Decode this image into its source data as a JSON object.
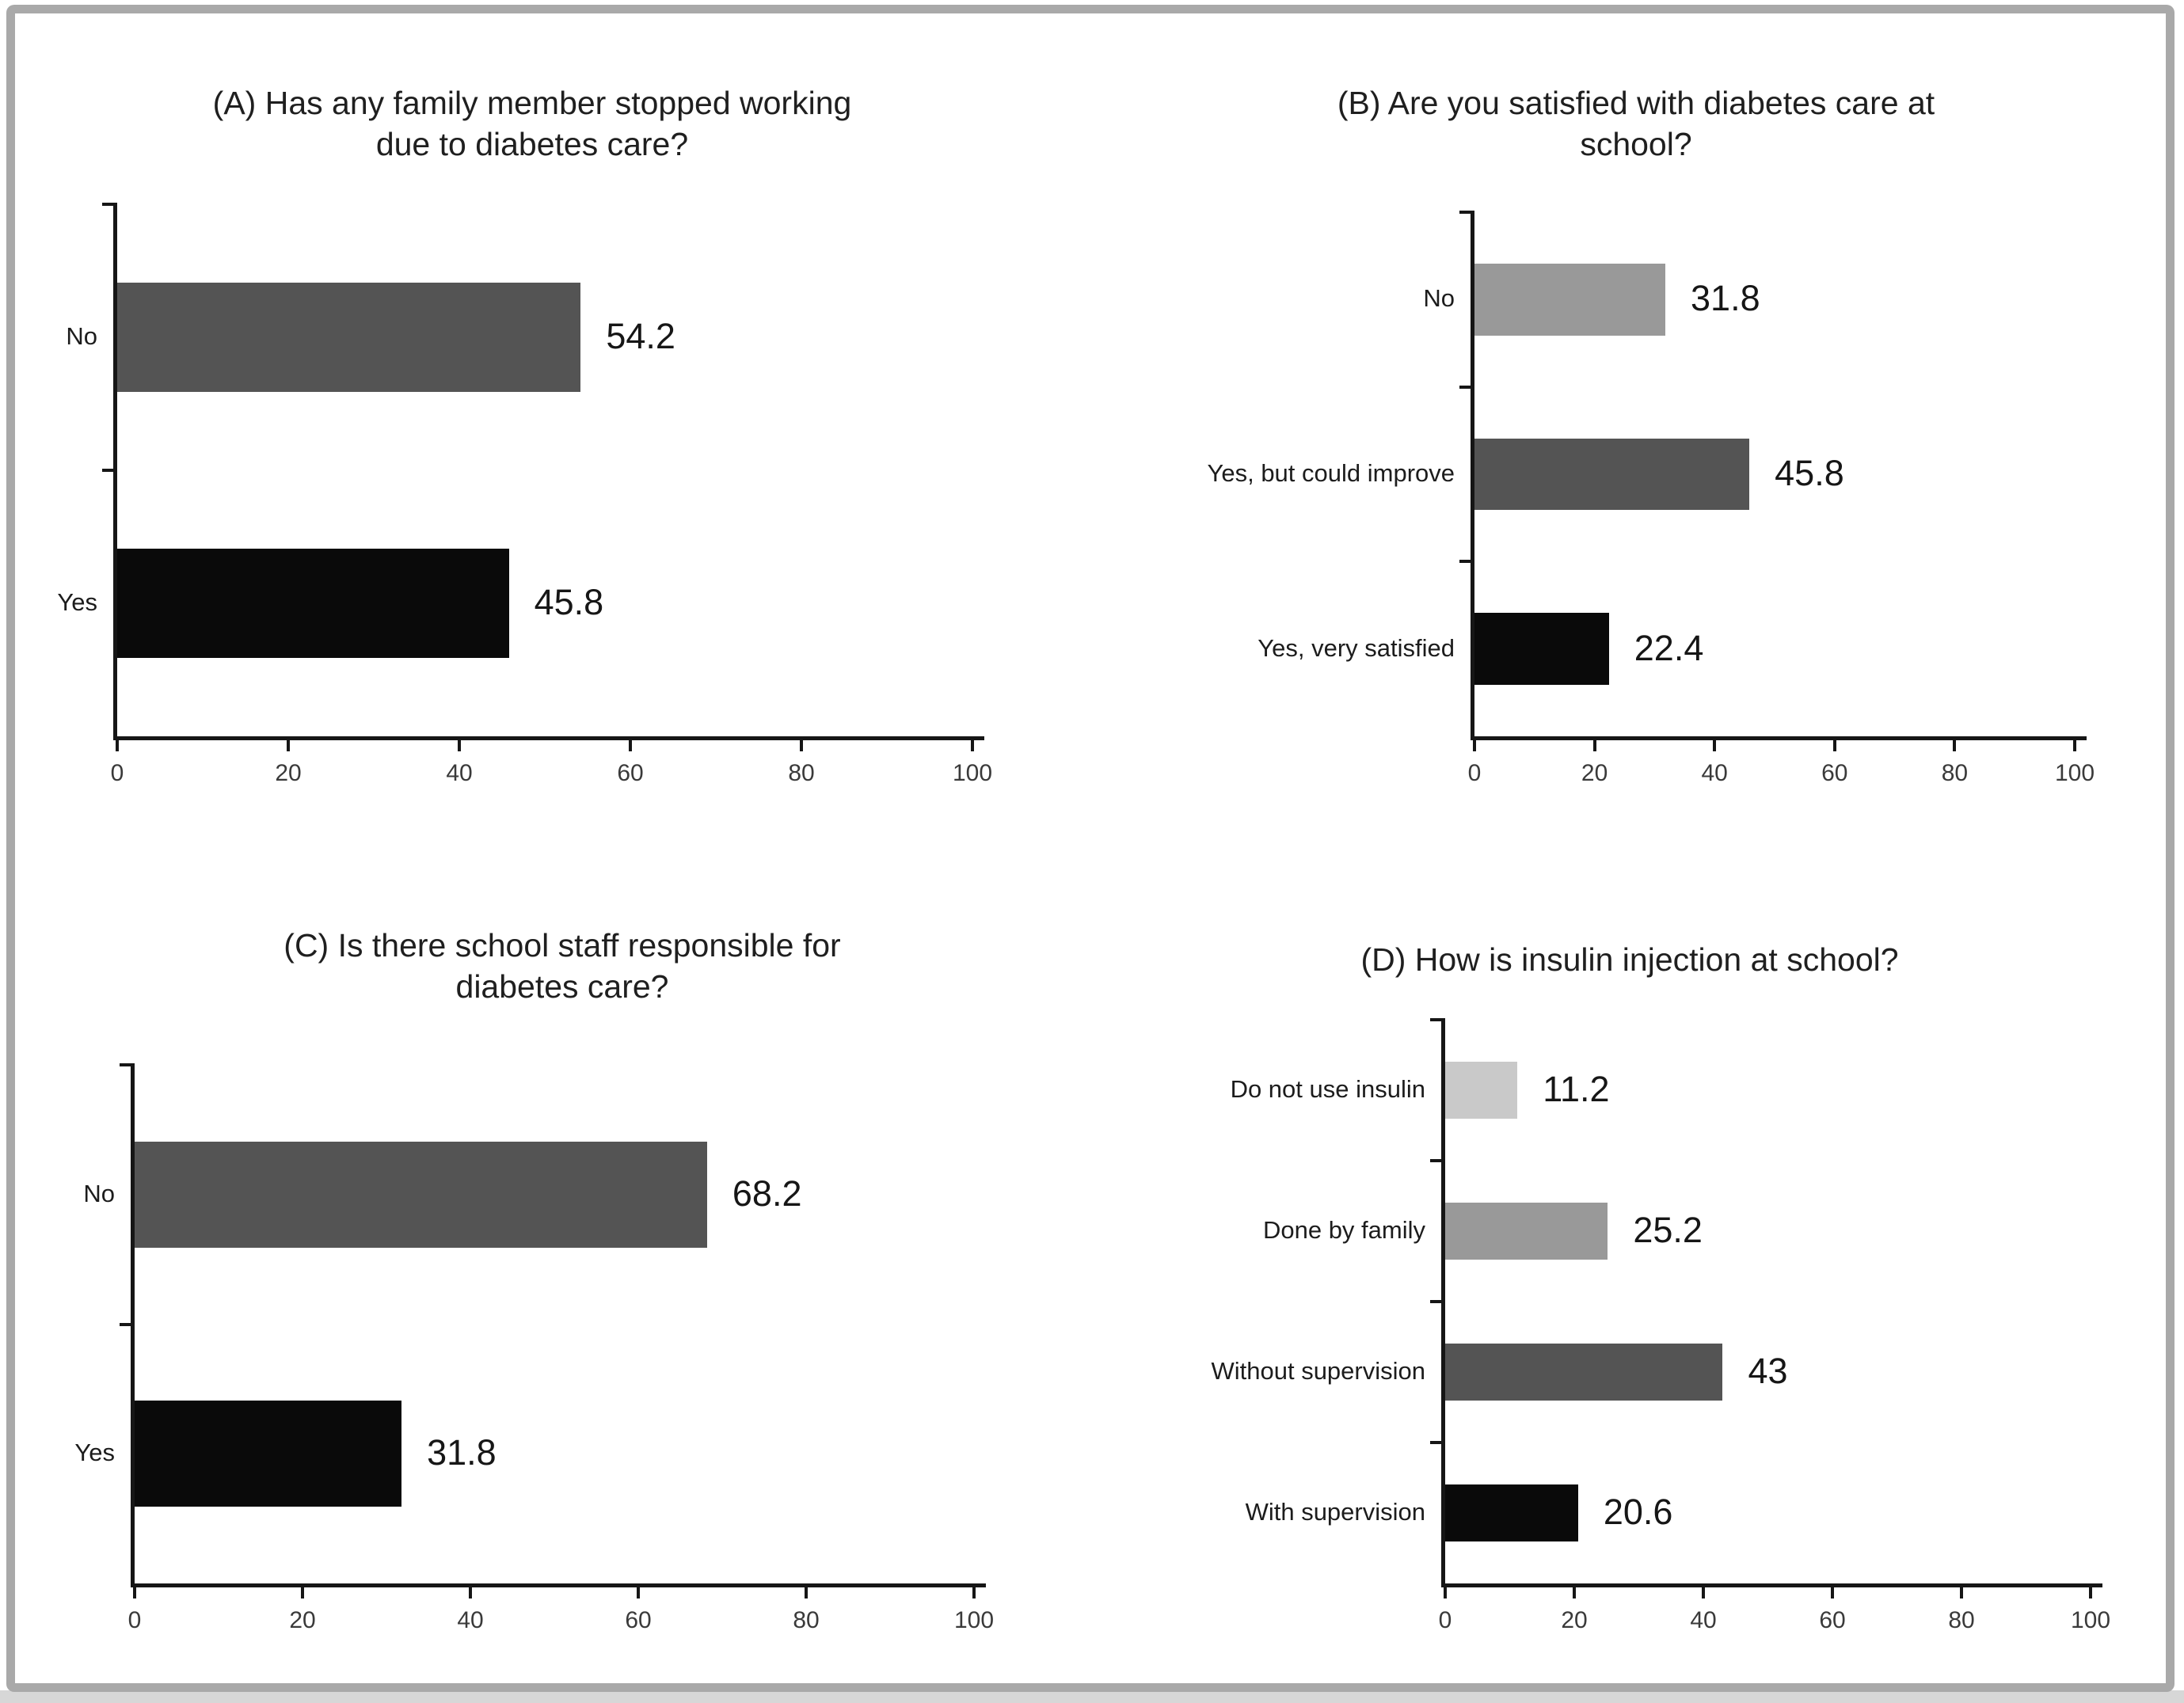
{
  "figure": {
    "description": "Four-panel horizontal bar chart figure about diabetes care at school",
    "background": "#ffffff",
    "frame_color": "#a9a9a9",
    "bottom_strip_color": "#d7d7d7",
    "grid": false,
    "legend": null
  },
  "chart_data": [
    {
      "id": "A",
      "type": "bar",
      "orientation": "horizontal",
      "title": "(A) Has any family member stopped working due to diabetes care?",
      "title_lines": [
        "(A) Has any family member stopped working",
        "due to diabetes care?"
      ],
      "categories": [
        "No",
        "Yes"
      ],
      "values": [
        54.2,
        45.8
      ],
      "value_labels": [
        "54.2",
        "45.8"
      ],
      "bar_colors": [
        "#545454",
        "#0a0a0a"
      ],
      "xlim": [
        0,
        100
      ],
      "xticks": [
        "0",
        "20",
        "40",
        "60",
        "80",
        "100"
      ]
    },
    {
      "id": "B",
      "type": "bar",
      "orientation": "horizontal",
      "title": "(B) Are you satisfied with diabetes care at school?",
      "title_lines": [
        "(B) Are you satisfied with diabetes care at",
        "school?"
      ],
      "categories": [
        "No",
        "Yes, but could improve",
        "Yes, very satisfied"
      ],
      "values": [
        31.8,
        45.8,
        22.4
      ],
      "value_labels": [
        "31.8",
        "45.8",
        "22.4"
      ],
      "bar_colors": [
        "#999999",
        "#545454",
        "#0a0a0a"
      ],
      "xlim": [
        0,
        100
      ],
      "xticks": [
        "0",
        "20",
        "40",
        "60",
        "80",
        "100"
      ]
    },
    {
      "id": "C",
      "type": "bar",
      "orientation": "horizontal",
      "title": "(C) Is there school staff responsible for diabetes care?",
      "title_lines": [
        "(C) Is there school staff responsible for",
        "diabetes care?"
      ],
      "categories": [
        "No",
        "Yes"
      ],
      "values": [
        68.2,
        31.8
      ],
      "value_labels": [
        "68.2",
        "31.8"
      ],
      "bar_colors": [
        "#545454",
        "#0a0a0a"
      ],
      "xlim": [
        0,
        100
      ],
      "xticks": [
        "0",
        "20",
        "40",
        "60",
        "80",
        "100"
      ]
    },
    {
      "id": "D",
      "type": "bar",
      "orientation": "horizontal",
      "title": "(D) How is insulin injection at school?",
      "title_lines": [
        "(D) How is insulin injection at school?"
      ],
      "categories": [
        "Do not use insulin",
        "Done by family",
        "Without supervision",
        "With supervision"
      ],
      "values": [
        11.2,
        25.2,
        43,
        20.6
      ],
      "value_labels": [
        "11.2",
        "25.2",
        "43",
        "20.6"
      ],
      "bar_colors": [
        "#c9c9c9",
        "#999999",
        "#545454",
        "#0a0a0a"
      ],
      "xlim": [
        0,
        100
      ],
      "xticks": [
        "0",
        "20",
        "40",
        "60",
        "80",
        "100"
      ]
    }
  ]
}
